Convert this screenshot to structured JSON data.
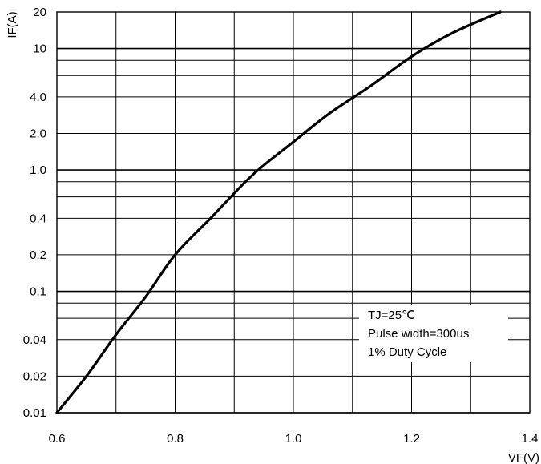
{
  "chart_data": {
    "type": "line",
    "x_scale": "linear",
    "y_scale": "log",
    "xlim": [
      0.6,
      1.4
    ],
    "ylim": [
      0.01,
      20
    ],
    "xlabel": "VF(V)",
    "ylabel": "IF(A)",
    "x_ticks": [
      0.6,
      0.8,
      1.0,
      1.2,
      1.4
    ],
    "x_tick_labels": [
      "0.6",
      "0.8",
      "1.0",
      "1.2",
      "1.4"
    ],
    "x_minor_grid": [
      0.7,
      0.9,
      1.1,
      1.3
    ],
    "y_ticks": [
      0.01,
      0.02,
      0.04,
      0.1,
      0.2,
      0.4,
      1.0,
      2.0,
      4.0,
      10,
      20
    ],
    "y_tick_labels": [
      "0.01",
      "0.02",
      "0.04",
      "0.1",
      "0.2",
      "0.4",
      "1.0",
      "2.0",
      "4.0",
      "10",
      "20"
    ],
    "y_extra_grid": [
      0.06,
      0.08,
      0.6,
      0.8,
      6,
      8
    ],
    "grid": true,
    "series": [
      {
        "x": [
          0.6,
          0.65,
          0.7,
          0.75,
          0.8,
          0.86,
          0.93,
          1.0,
          1.06,
          1.13,
          1.2,
          1.27,
          1.35
        ],
        "y": [
          0.01,
          0.02,
          0.044,
          0.09,
          0.2,
          0.4,
          0.9,
          1.7,
          2.9,
          4.9,
          8.6,
          13.5,
          20
        ]
      }
    ],
    "annotations": [
      "TJ=25℃",
      "Pulse width=300us",
      "1% Duty Cycle"
    ],
    "colors": {
      "line": "#000000",
      "grid": "#000000",
      "background": "#ffffff"
    }
  }
}
